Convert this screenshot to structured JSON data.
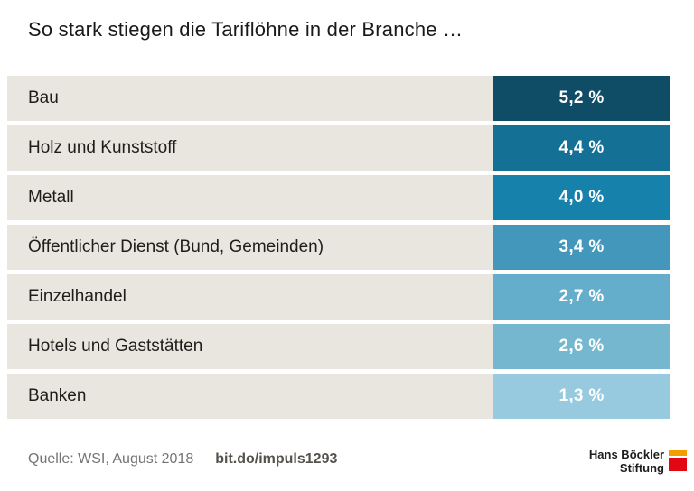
{
  "chart_data": {
    "type": "bar",
    "title": "So stark stiegen die Tariflöhne in der Branche …",
    "categories": [
      "Bau",
      "Holz und Kunststoff",
      "Metall",
      "Öffentlicher Dienst (Bund, Gemeinden)",
      "Einzelhandel",
      "Hotels und Gaststätten",
      "Banken"
    ],
    "values": [
      5.2,
      4.4,
      4.0,
      3.4,
      2.7,
      2.6,
      1.3
    ],
    "value_labels": [
      "5,2 %",
      "4,4 %",
      "4,0 %",
      "3,4 %",
      "2,7 %",
      "2,6 %",
      "1,3 %"
    ],
    "unit": "%",
    "xlabel": "",
    "ylabel": "",
    "legend": "none",
    "grid": false,
    "layout_hint": "horizontal rows, equal-width value boxes color-coded by value (dark = high)",
    "colors": [
      "#0f4d67",
      "#157096",
      "#1682ab",
      "#4397bb",
      "#65aecb",
      "#76b7d0",
      "#97cade"
    ],
    "row_background": "#e9e6df"
  },
  "footer": {
    "source": "Quelle: WSI, August 2018",
    "link": "bit.do/impuls1293",
    "logo_line1": "Hans Böckler",
    "logo_line2": "Stiftung"
  }
}
